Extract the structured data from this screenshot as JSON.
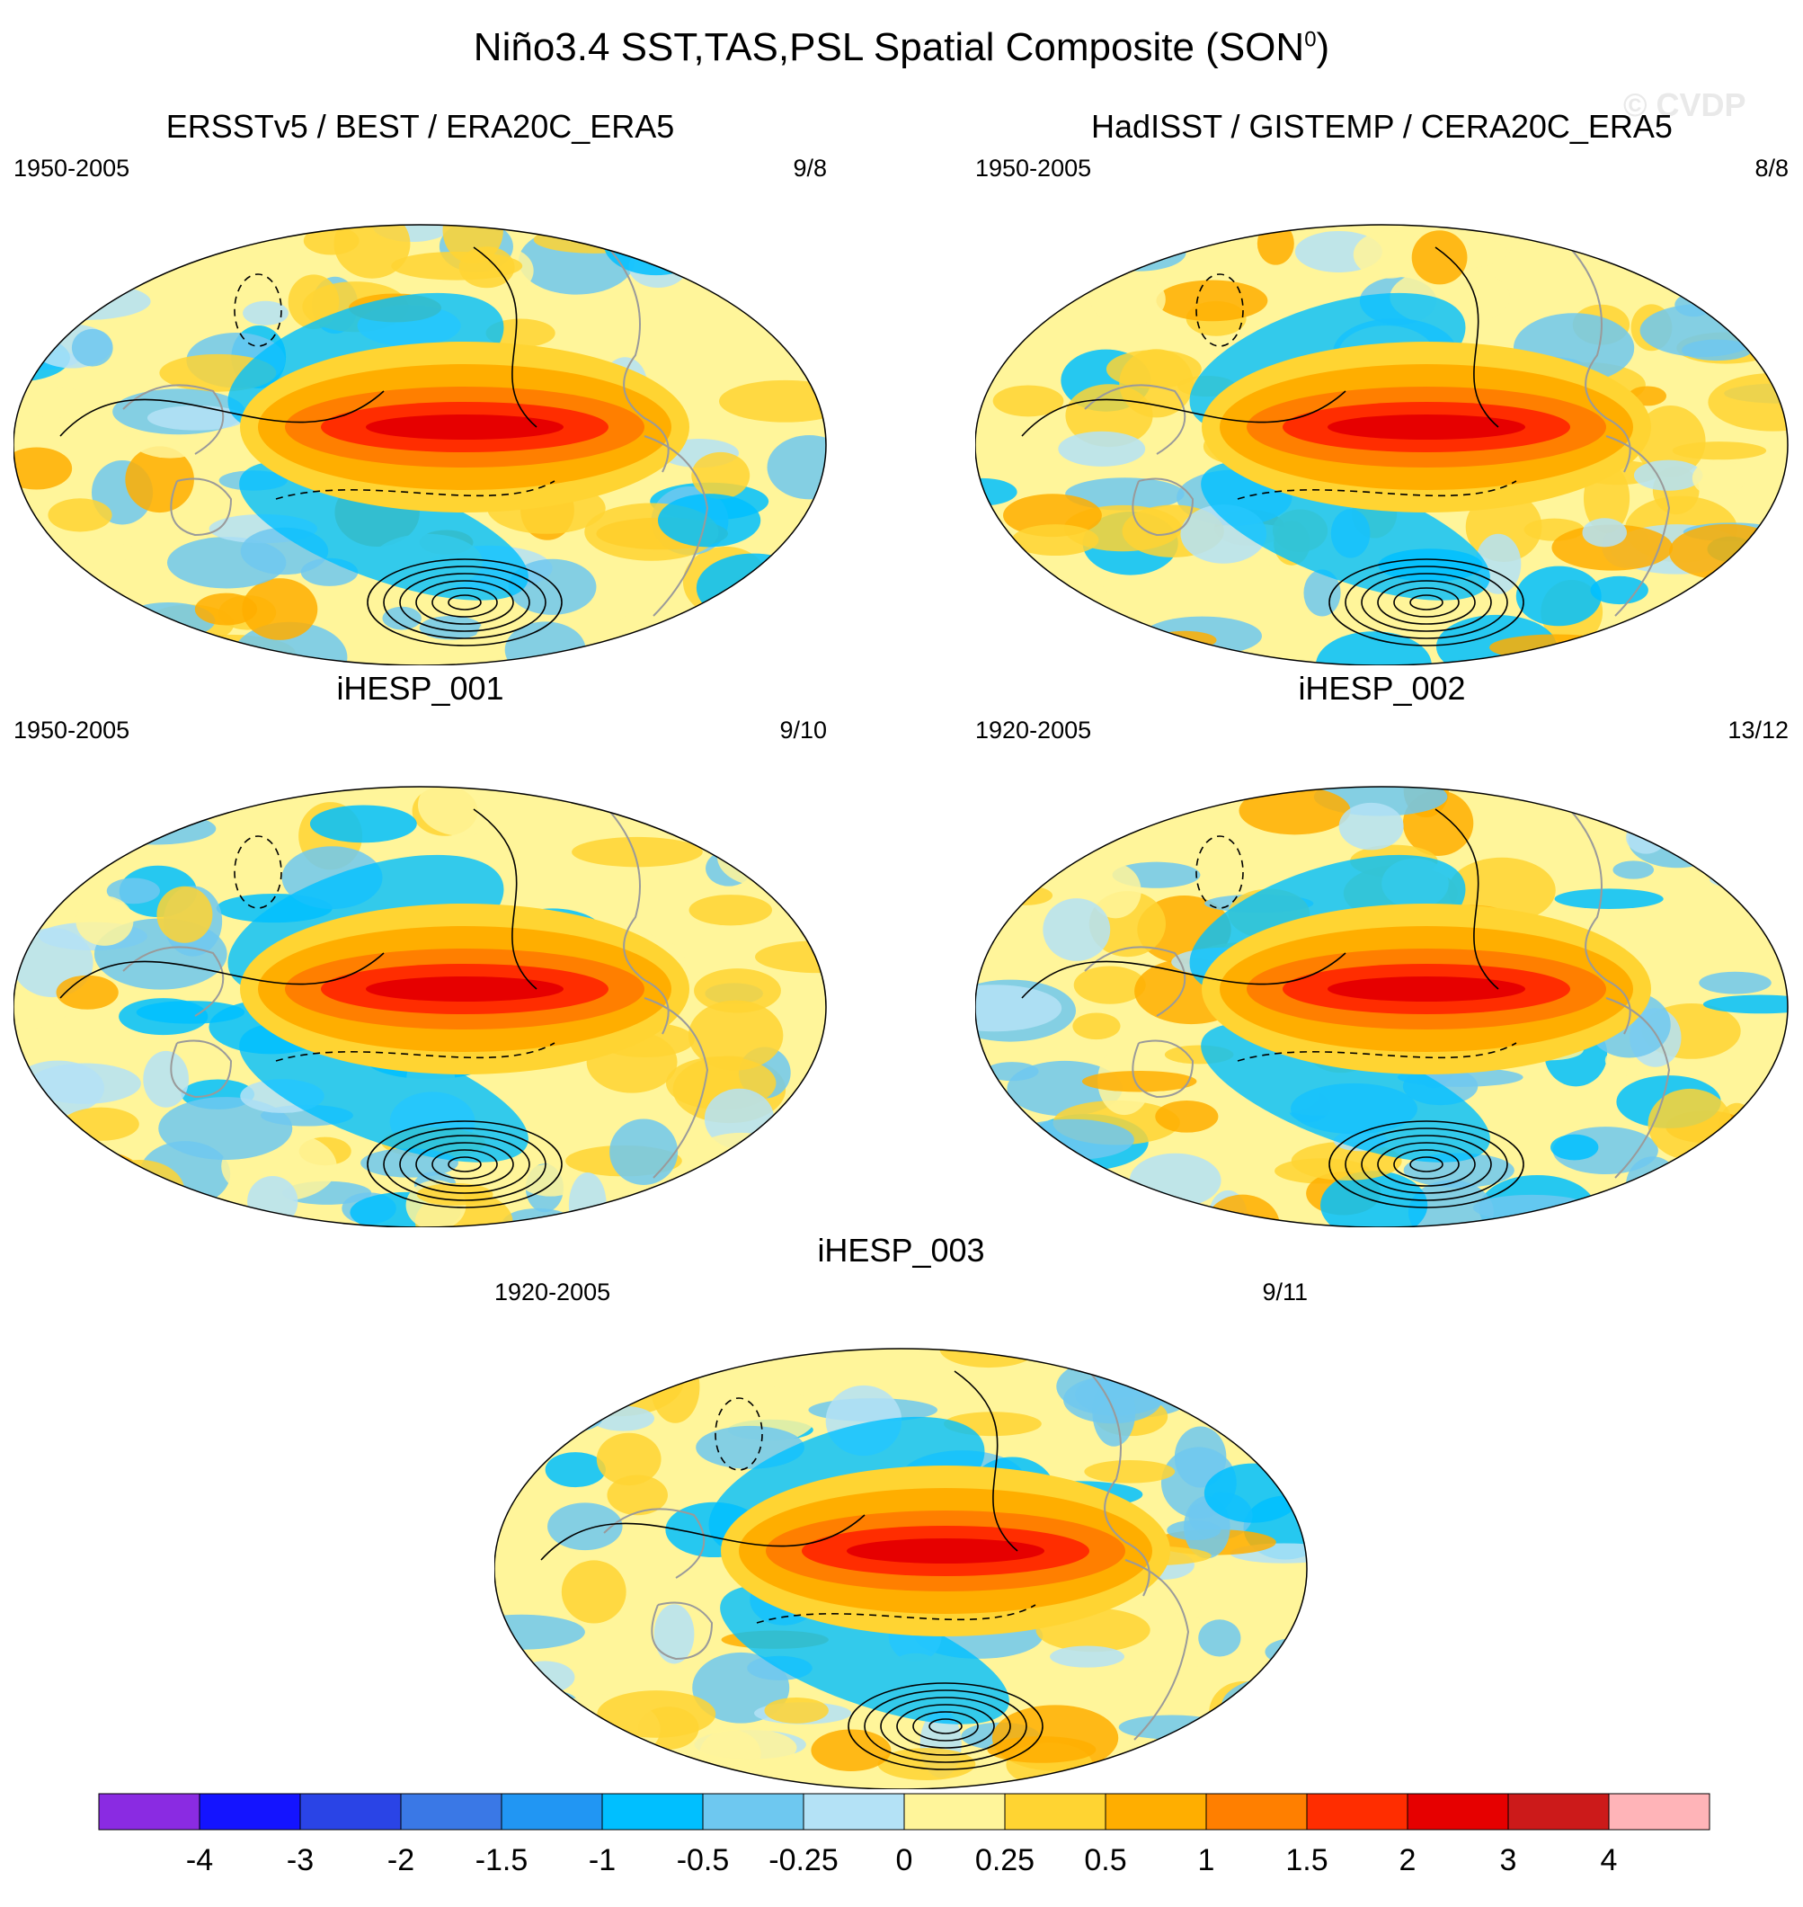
{
  "title": "Niño3.4 SST,TAS,PSL Spatial Composite (SON",
  "title_sup": "0",
  "title_close": ")",
  "watermark": "© CVDP",
  "chart_data": [
    {
      "type": "heatmap",
      "title": "ERSSTv5 / BEST / ERA20C_ERA5",
      "period": "1950-2005",
      "count": "9/8",
      "peak_sst": 2.5,
      "scheme": "obs1"
    },
    {
      "type": "heatmap",
      "title": "HadISST / GISTEMP / CERA20C_ERA5",
      "period": "1950-2005",
      "count": "8/8",
      "peak_sst": 2.5,
      "scheme": "obs2"
    },
    {
      "type": "heatmap",
      "title": "iHESP_001",
      "period": "1950-2005",
      "count": "9/10",
      "peak_sst": 2.4,
      "scheme": "m1"
    },
    {
      "type": "heatmap",
      "title": "iHESP_002",
      "period": "1920-2005",
      "count": "13/12",
      "peak_sst": 2.3,
      "scheme": "m2"
    },
    {
      "type": "heatmap",
      "title": "iHESP_003",
      "period": "1920-2005",
      "count": "9/11",
      "peak_sst": 2.4,
      "scheme": "m3"
    }
  ],
  "colorbar": {
    "colors": [
      "#8a2be2",
      "#1414ff",
      "#2a44e6",
      "#3a78e6",
      "#2196f3",
      "#00bfff",
      "#6ec8f0",
      "#b4e2f6",
      "#fff59a",
      "#ffd432",
      "#ffae00",
      "#ff7f00",
      "#ff2d00",
      "#e60000",
      "#cc1a1a",
      "#ffb4b8"
    ],
    "labels": [
      "-4",
      "-3",
      "-2",
      "-1.5",
      "-1",
      "-0.5",
      "-0.25",
      "0",
      "0.25",
      "0.5",
      "1",
      "1.5",
      "2",
      "3",
      "4"
    ]
  }
}
